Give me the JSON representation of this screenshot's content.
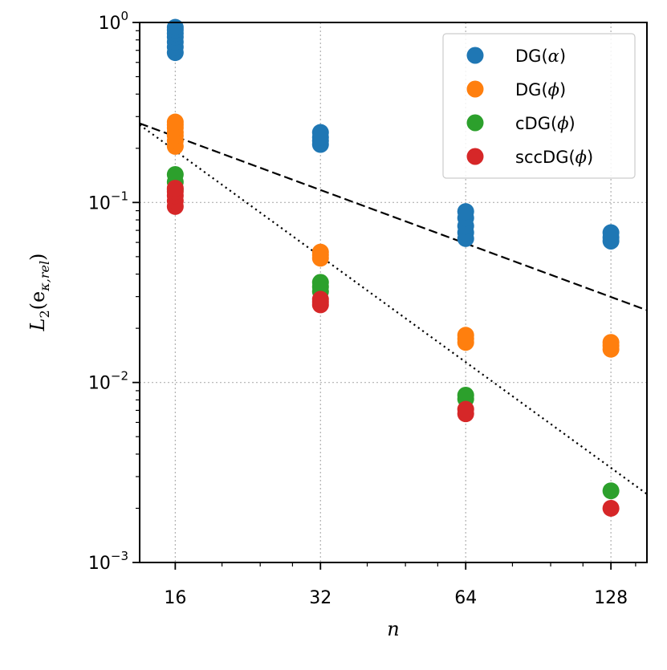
{
  "chart_data": {
    "type": "scatter",
    "title": "",
    "xlabel": "n",
    "ylabel": "L",
    "ylabel_subscript": "2",
    "ylabel_argument": "(e",
    "ylabel_argument_subscript": "κ,rel",
    "ylabel_close": ")",
    "xscale": "log2",
    "yscale": "log10",
    "xlim": [
      13.5,
      152
    ],
    "ylim": [
      0.001,
      1.0
    ],
    "x_ticks": [
      16,
      32,
      64,
      128
    ],
    "x_tick_labels": [
      "16",
      "32",
      "64",
      "128"
    ],
    "y_ticks": [
      0.001,
      0.01,
      0.1,
      1
    ],
    "y_tick_labels": [
      {
        "base": "10",
        "exp": "−3"
      },
      {
        "base": "10",
        "exp": "−2"
      },
      {
        "base": "10",
        "exp": "−1"
      },
      {
        "base": "10",
        "exp": "0"
      }
    ],
    "grid": true,
    "legend_position": "top-right",
    "series": [
      {
        "name": "DG(α)",
        "legend_text": "DG(",
        "legend_symbol": "α",
        "legend_close": ")",
        "color": "#1f77b4",
        "x": [
          16,
          16,
          16,
          16,
          16,
          16,
          16,
          32,
          32,
          32,
          32,
          64,
          64,
          64,
          64,
          64,
          128,
          128,
          128
        ],
        "y": [
          0.68,
          0.73,
          0.78,
          0.83,
          0.87,
          0.91,
          0.94,
          0.21,
          0.22,
          0.23,
          0.245,
          0.063,
          0.068,
          0.074,
          0.082,
          0.089,
          0.061,
          0.064,
          0.068
        ]
      },
      {
        "name": "DG(ϕ)",
        "legend_text": "DG(",
        "legend_symbol": "ϕ",
        "legend_close": ")",
        "color": "#ff7f0e",
        "x": [
          16,
          16,
          16,
          16,
          16,
          16,
          16,
          32,
          32,
          32,
          64,
          64,
          64,
          128,
          128,
          128
        ],
        "y": [
          0.205,
          0.22,
          0.235,
          0.245,
          0.26,
          0.27,
          0.28,
          0.049,
          0.051,
          0.053,
          0.0167,
          0.0175,
          0.0183,
          0.0153,
          0.016,
          0.0167
        ]
      },
      {
        "name": "cDG(ϕ)",
        "legend_text": "cDG(",
        "legend_symbol": "ϕ",
        "legend_close": ")",
        "color": "#2ca02c",
        "x": [
          16,
          16,
          16,
          32,
          32,
          32,
          64,
          64,
          128
        ],
        "y": [
          0.118,
          0.13,
          0.143,
          0.032,
          0.034,
          0.036,
          0.0081,
          0.0085,
          0.0025
        ]
      },
      {
        "name": "sccDG(ϕ)",
        "legend_text": "sccDG(",
        "legend_symbol": "ϕ",
        "legend_close": ")",
        "color": "#d62728",
        "x": [
          16,
          16,
          16,
          16,
          16,
          32,
          32,
          32,
          64,
          64,
          128
        ],
        "y": [
          0.095,
          0.102,
          0.109,
          0.115,
          0.12,
          0.027,
          0.028,
          0.029,
          0.0067,
          0.0071,
          0.002
        ]
      }
    ],
    "reference_lines": [
      {
        "name": "dashed reference (slope -1)",
        "style": "dashed",
        "x": [
          13.5,
          152
        ],
        "y": [
          0.275,
          0.0252
        ]
      },
      {
        "name": "dotted reference (slope -2)",
        "style": "dotted",
        "x": [
          13.5,
          152
        ],
        "y": [
          0.27,
          0.0024
        ]
      }
    ]
  }
}
